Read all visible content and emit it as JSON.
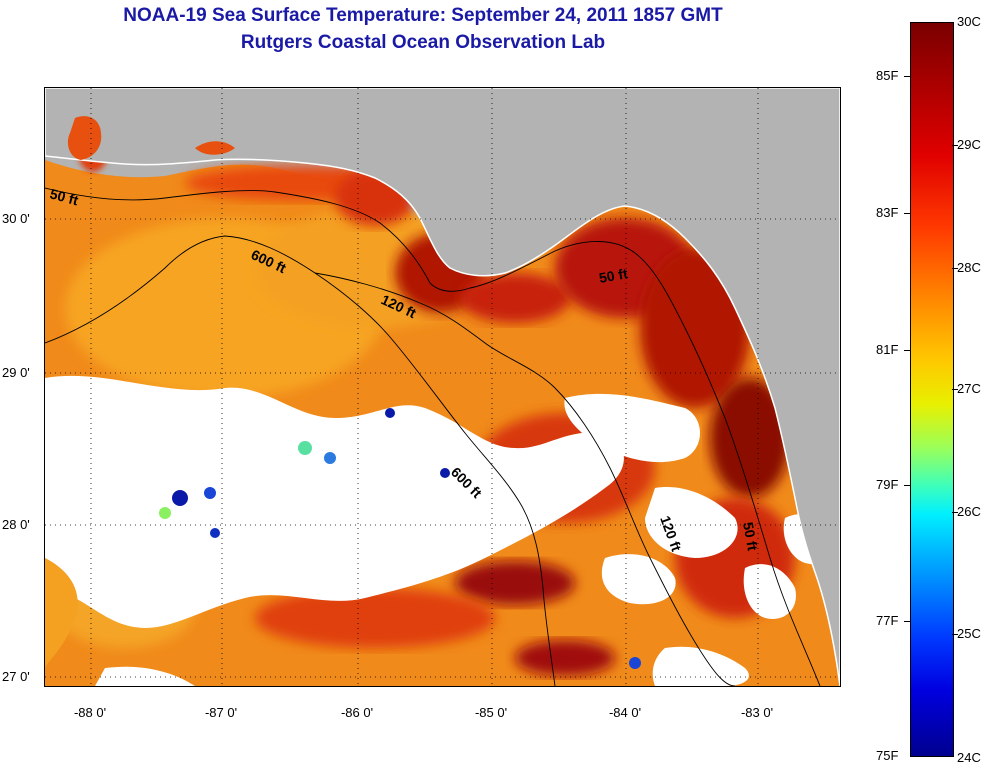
{
  "title": {
    "line1": "NOAA-19 Sea Surface Temperature:  September 24, 2011 1857 GMT",
    "line2": "Rutgers Coastal Ocean Observation Lab"
  },
  "map": {
    "lon_ticks": [
      "-88 0'",
      "-87 0'",
      "-86 0'",
      "-85 0'",
      "-84 0'",
      "-83 0'"
    ],
    "lat_ticks": [
      "30 0'",
      "29 0'",
      "28 0'",
      "27 0'"
    ],
    "contour_labels": [
      "50 ft",
      "600 ft",
      "120 ft",
      "50 ft",
      "600 ft",
      "120 ft",
      "50 ft"
    ],
    "colors": {
      "land": "#b3b3b3",
      "cloud": "#ffffff",
      "contour": "#000000"
    }
  },
  "colorbar": {
    "fahrenheit": [
      "85F",
      "83F",
      "81F",
      "79F",
      "77F",
      "75F"
    ],
    "celsius": [
      "30C",
      "29C",
      "28C",
      "27C",
      "26C",
      "25C",
      "24C"
    ]
  }
}
